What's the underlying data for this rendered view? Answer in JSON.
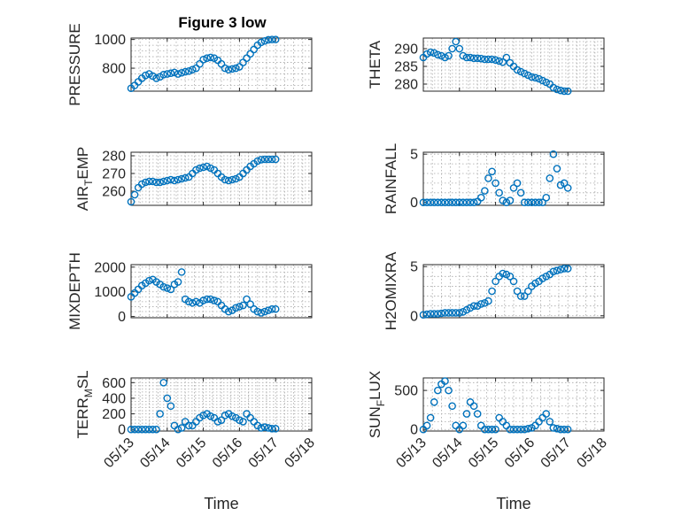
{
  "figure": {
    "title": "Figure 3 low",
    "marker_color": "#0072BD",
    "date_ticks": [
      "05/13",
      "05/14",
      "05/15",
      "05/16",
      "05/17",
      "05/18"
    ],
    "xlabel": "Time"
  },
  "chart_data": [
    {
      "id": "pressure",
      "type": "scatter",
      "marker": "circle",
      "ylabel": "PRESSURE",
      "ylim": [
        640,
        1010
      ],
      "yticks": [
        800,
        1000
      ],
      "xlim": [
        "05/13",
        "05/18"
      ],
      "grid": true,
      "x_days": [
        0.0,
        0.1,
        0.2,
        0.3,
        0.4,
        0.5,
        0.6,
        0.7,
        0.8,
        0.9,
        1.0,
        1.1,
        1.2,
        1.3,
        1.4,
        1.5,
        1.6,
        1.7,
        1.8,
        1.9,
        2.0,
        2.1,
        2.2,
        2.3,
        2.4,
        2.5,
        2.6,
        2.7,
        2.8,
        2.9,
        3.0,
        3.1,
        3.2,
        3.3,
        3.4,
        3.5,
        3.6,
        3.7,
        3.8,
        3.9,
        4.0
      ],
      "y": [
        660,
        680,
        705,
        730,
        750,
        760,
        745,
        730,
        740,
        755,
        760,
        765,
        770,
        760,
        768,
        775,
        780,
        790,
        800,
        830,
        860,
        870,
        875,
        870,
        855,
        830,
        800,
        790,
        795,
        800,
        810,
        840,
        870,
        900,
        930,
        960,
        980,
        990,
        998,
        1000,
        1000
      ]
    },
    {
      "id": "theta",
      "type": "scatter",
      "marker": "circle",
      "ylabel": "THETA",
      "ylim": [
        278,
        293
      ],
      "yticks": [
        280,
        285,
        290
      ],
      "xlim": [
        "05/13",
        "05/18"
      ],
      "grid": true,
      "x_days": [
        0.0,
        0.1,
        0.2,
        0.3,
        0.4,
        0.5,
        0.6,
        0.7,
        0.8,
        0.9,
        1.0,
        1.1,
        1.2,
        1.3,
        1.4,
        1.5,
        1.6,
        1.7,
        1.8,
        1.9,
        2.0,
        2.1,
        2.2,
        2.3,
        2.4,
        2.5,
        2.6,
        2.7,
        2.8,
        2.9,
        3.0,
        3.1,
        3.2,
        3.3,
        3.4,
        3.5,
        3.6,
        3.7,
        3.8,
        3.9,
        4.0
      ],
      "y": [
        287.5,
        288.5,
        289,
        288.8,
        288.3,
        288,
        287.5,
        288,
        290,
        292,
        290,
        288,
        287.5,
        287.5,
        287.3,
        287.3,
        287.2,
        287,
        287,
        287,
        286.8,
        286.5,
        286.2,
        287.5,
        286,
        285,
        284,
        283.5,
        283,
        282.5,
        282,
        281.8,
        281.5,
        281,
        280.5,
        280,
        279,
        278.5,
        278.2,
        278,
        278
      ]
    },
    {
      "id": "air_temp",
      "type": "scatter",
      "marker": "circle",
      "ylabel": "AIR_TEMP",
      "ylim": [
        252,
        282
      ],
      "yticks": [
        260,
        270,
        280
      ],
      "xlim": [
        "05/13",
        "05/18"
      ],
      "grid": true,
      "x_days": [
        0.0,
        0.1,
        0.2,
        0.3,
        0.4,
        0.5,
        0.6,
        0.7,
        0.8,
        0.9,
        1.0,
        1.1,
        1.2,
        1.3,
        1.4,
        1.5,
        1.6,
        1.7,
        1.8,
        1.9,
        2.0,
        2.1,
        2.2,
        2.3,
        2.4,
        2.5,
        2.6,
        2.7,
        2.8,
        2.9,
        3.0,
        3.1,
        3.2,
        3.3,
        3.4,
        3.5,
        3.6,
        3.7,
        3.8,
        3.9,
        4.0
      ],
      "y": [
        254,
        258,
        262,
        264,
        265,
        265.5,
        265.5,
        265,
        265,
        265.5,
        266,
        266.5,
        266,
        266.5,
        267,
        267.5,
        268,
        270,
        272,
        273,
        273.5,
        274,
        273,
        272,
        270,
        268,
        266.5,
        266,
        266.5,
        267,
        268,
        270,
        272,
        274,
        275.5,
        277,
        277.8,
        278,
        278,
        278,
        278
      ]
    },
    {
      "id": "rainfall",
      "type": "scatter",
      "marker": "circle",
      "ylabel": "RAINFALL",
      "ylim": [
        -0.3,
        5.2
      ],
      "yticks": [
        0,
        5
      ],
      "xlim": [
        "05/13",
        "05/18"
      ],
      "grid": true,
      "x_days": [
        0.0,
        0.1,
        0.2,
        0.3,
        0.4,
        0.5,
        0.6,
        0.7,
        0.8,
        0.9,
        1.0,
        1.1,
        1.2,
        1.3,
        1.4,
        1.5,
        1.6,
        1.7,
        1.8,
        1.9,
        2.0,
        2.1,
        2.2,
        2.3,
        2.4,
        2.5,
        2.6,
        2.7,
        2.8,
        2.9,
        3.0,
        3.1,
        3.2,
        3.3,
        3.4,
        3.5,
        3.6,
        3.7,
        3.8,
        3.9,
        4.0
      ],
      "y": [
        0,
        0,
        0,
        0,
        0,
        0,
        0,
        0,
        0,
        0,
        0,
        0,
        0,
        0,
        0,
        0.1,
        0.5,
        1.2,
        2.5,
        3.2,
        2.0,
        1.0,
        0.2,
        0,
        0.2,
        1.5,
        2.0,
        1.0,
        0,
        0,
        0,
        0,
        0,
        0,
        0.5,
        2.5,
        5.0,
        3.5,
        1.8,
        2.0,
        1.5
      ]
    },
    {
      "id": "mixdepth",
      "type": "scatter",
      "marker": "circle",
      "ylabel": "MIXDEPTH",
      "ylim": [
        -50,
        2100
      ],
      "yticks": [
        0,
        1000,
        2000
      ],
      "xlim": [
        "05/13",
        "05/18"
      ],
      "grid": true,
      "x_days": [
        0.0,
        0.1,
        0.2,
        0.3,
        0.4,
        0.5,
        0.6,
        0.7,
        0.8,
        0.9,
        1.0,
        1.1,
        1.2,
        1.3,
        1.4,
        1.5,
        1.6,
        1.7,
        1.8,
        1.9,
        2.0,
        2.1,
        2.2,
        2.3,
        2.4,
        2.5,
        2.6,
        2.7,
        2.8,
        2.9,
        3.0,
        3.1,
        3.2,
        3.3,
        3.4,
        3.5,
        3.6,
        3.7,
        3.8,
        3.9,
        4.0
      ],
      "y": [
        800,
        950,
        1100,
        1250,
        1350,
        1450,
        1500,
        1400,
        1300,
        1200,
        1150,
        1100,
        1300,
        1400,
        1800,
        700,
        600,
        550,
        600,
        550,
        650,
        700,
        700,
        650,
        600,
        450,
        300,
        200,
        250,
        350,
        400,
        450,
        700,
        500,
        300,
        200,
        150,
        200,
        250,
        300,
        300
      ]
    },
    {
      "id": "h2omixra",
      "type": "scatter",
      "marker": "circle",
      "ylabel": "H2OMIXRA",
      "ylim": [
        -0.2,
        5.2
      ],
      "yticks": [
        0,
        5
      ],
      "xlim": [
        "05/13",
        "05/18"
      ],
      "grid": true,
      "x_days": [
        0.0,
        0.1,
        0.2,
        0.3,
        0.4,
        0.5,
        0.6,
        0.7,
        0.8,
        0.9,
        1.0,
        1.1,
        1.2,
        1.3,
        1.4,
        1.5,
        1.6,
        1.7,
        1.8,
        1.9,
        2.0,
        2.1,
        2.2,
        2.3,
        2.4,
        2.5,
        2.6,
        2.7,
        2.8,
        2.9,
        3.0,
        3.1,
        3.2,
        3.3,
        3.4,
        3.5,
        3.6,
        3.7,
        3.8,
        3.9,
        4.0
      ],
      "y": [
        0.1,
        0.15,
        0.2,
        0.2,
        0.2,
        0.25,
        0.3,
        0.3,
        0.3,
        0.3,
        0.3,
        0.4,
        0.6,
        0.8,
        1.0,
        1.0,
        1.2,
        1.3,
        1.5,
        2.5,
        3.5,
        4.0,
        4.3,
        4.2,
        4.0,
        3.5,
        2.5,
        2.0,
        2.0,
        2.5,
        3.0,
        3.3,
        3.5,
        3.8,
        4.0,
        4.2,
        4.5,
        4.6,
        4.7,
        4.8,
        4.8
      ]
    },
    {
      "id": "terr_msl",
      "type": "scatter",
      "marker": "circle",
      "ylabel": "TERR_MSL",
      "ylim": [
        -20,
        660
      ],
      "yticks": [
        0,
        200,
        400,
        600
      ],
      "xlim": [
        "05/13",
        "05/18"
      ],
      "grid": true,
      "x_days": [
        0.0,
        0.1,
        0.2,
        0.3,
        0.4,
        0.5,
        0.6,
        0.7,
        0.8,
        0.9,
        1.0,
        1.1,
        1.2,
        1.3,
        1.4,
        1.5,
        1.6,
        1.7,
        1.8,
        1.9,
        2.0,
        2.1,
        2.2,
        2.3,
        2.4,
        2.5,
        2.6,
        2.7,
        2.8,
        2.9,
        3.0,
        3.1,
        3.2,
        3.3,
        3.4,
        3.5,
        3.6,
        3.7,
        3.8,
        3.9,
        4.0
      ],
      "y": [
        0,
        0,
        0,
        0,
        0,
        0,
        0,
        0,
        200,
        600,
        400,
        300,
        50,
        0,
        20,
        100,
        50,
        50,
        100,
        150,
        180,
        200,
        170,
        150,
        100,
        120,
        180,
        200,
        170,
        150,
        120,
        100,
        200,
        150,
        100,
        50,
        20,
        30,
        20,
        10,
        10
      ]
    },
    {
      "id": "sun_flux",
      "type": "scatter",
      "marker": "circle",
      "ylabel": "SUN_FLUX",
      "ylim": [
        -20,
        660
      ],
      "yticks": [
        0,
        500
      ],
      "xlim": [
        "05/13",
        "05/18"
      ],
      "grid": true,
      "x_days": [
        0.0,
        0.1,
        0.2,
        0.3,
        0.4,
        0.5,
        0.6,
        0.7,
        0.8,
        0.9,
        1.0,
        1.1,
        1.2,
        1.3,
        1.4,
        1.5,
        1.6,
        1.7,
        1.8,
        1.9,
        2.0,
        2.1,
        2.2,
        2.3,
        2.4,
        2.5,
        2.6,
        2.7,
        2.8,
        2.9,
        3.0,
        3.1,
        3.2,
        3.3,
        3.4,
        3.5,
        3.6,
        3.7,
        3.8,
        3.9,
        4.0
      ],
      "y": [
        0,
        50,
        150,
        350,
        500,
        580,
        620,
        500,
        300,
        50,
        0,
        50,
        200,
        350,
        300,
        200,
        50,
        0,
        0,
        0,
        0,
        150,
        100,
        50,
        0,
        0,
        0,
        0,
        0,
        10,
        20,
        50,
        100,
        150,
        200,
        100,
        20,
        10,
        0,
        0,
        0
      ]
    }
  ]
}
